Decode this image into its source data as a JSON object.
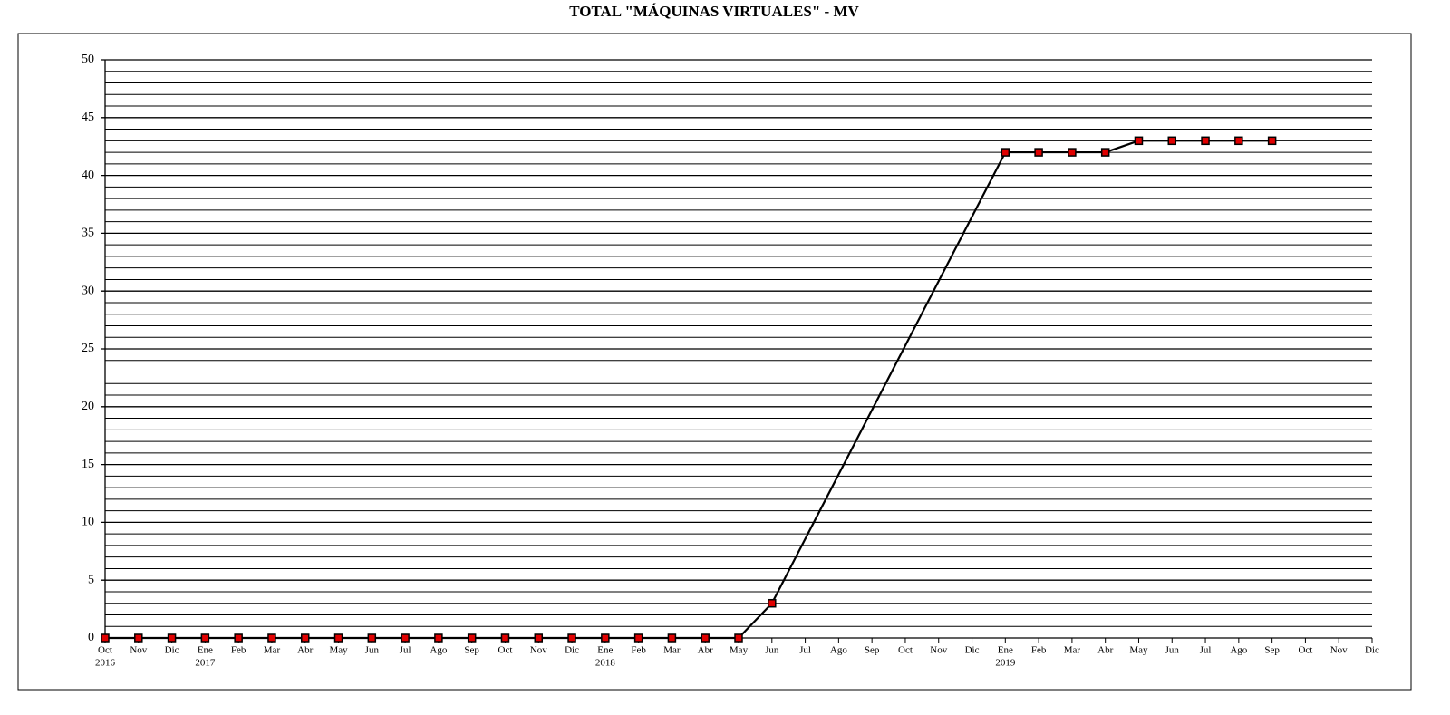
{
  "chart_data": {
    "type": "line",
    "title": "TOTAL \"MÁQUINAS VIRTUALES\" - MV",
    "categories": [
      "Oct",
      "Nov",
      "Dic",
      "Ene",
      "Feb",
      "Mar",
      "Abr",
      "May",
      "Jun",
      "Jul",
      "Ago",
      "Sep",
      "Oct",
      "Nov",
      "Dic",
      "Ene",
      "Feb",
      "Mar",
      "Abr",
      "May",
      "Jun",
      "Jul",
      "Ago",
      "Sep",
      "Oct",
      "Nov",
      "Dic",
      "Ene",
      "Feb",
      "Mar",
      "Abr",
      "May",
      "Jun",
      "Jul",
      "Ago",
      "Sep",
      "Oct",
      "Nov",
      "Dic"
    ],
    "category_years": [
      "2016",
      null,
      null,
      "2017",
      null,
      null,
      null,
      null,
      null,
      null,
      null,
      null,
      null,
      null,
      null,
      "2018",
      null,
      null,
      null,
      null,
      null,
      null,
      null,
      null,
      null,
      null,
      null,
      "2019",
      null,
      null,
      null,
      null,
      null,
      null,
      null,
      null,
      null,
      null,
      null
    ],
    "series": [
      {
        "color": "#000000",
        "marker_color": "#e00000",
        "values": [
          0,
          0,
          0,
          0,
          0,
          0,
          0,
          0,
          0,
          0,
          0,
          0,
          0,
          0,
          0,
          0,
          0,
          0,
          0,
          0,
          3,
          null,
          null,
          null,
          null,
          null,
          null,
          42,
          42,
          42,
          42,
          43,
          43,
          43,
          43,
          43,
          null,
          null,
          null
        ]
      }
    ],
    "ylim": [
      0,
      50
    ],
    "yticks": [
      0,
      5,
      10,
      15,
      20,
      25,
      30,
      35,
      40,
      45,
      50
    ],
    "yminorticks": [
      1,
      2,
      3,
      4,
      6,
      7,
      8,
      9,
      11,
      12,
      13,
      14,
      16,
      17,
      18,
      19,
      21,
      22,
      23,
      24,
      26,
      27,
      28,
      29,
      31,
      32,
      33,
      34,
      36,
      37,
      38,
      39,
      41,
      42,
      43,
      44,
      46,
      47,
      48,
      49
    ],
    "grid": true
  }
}
